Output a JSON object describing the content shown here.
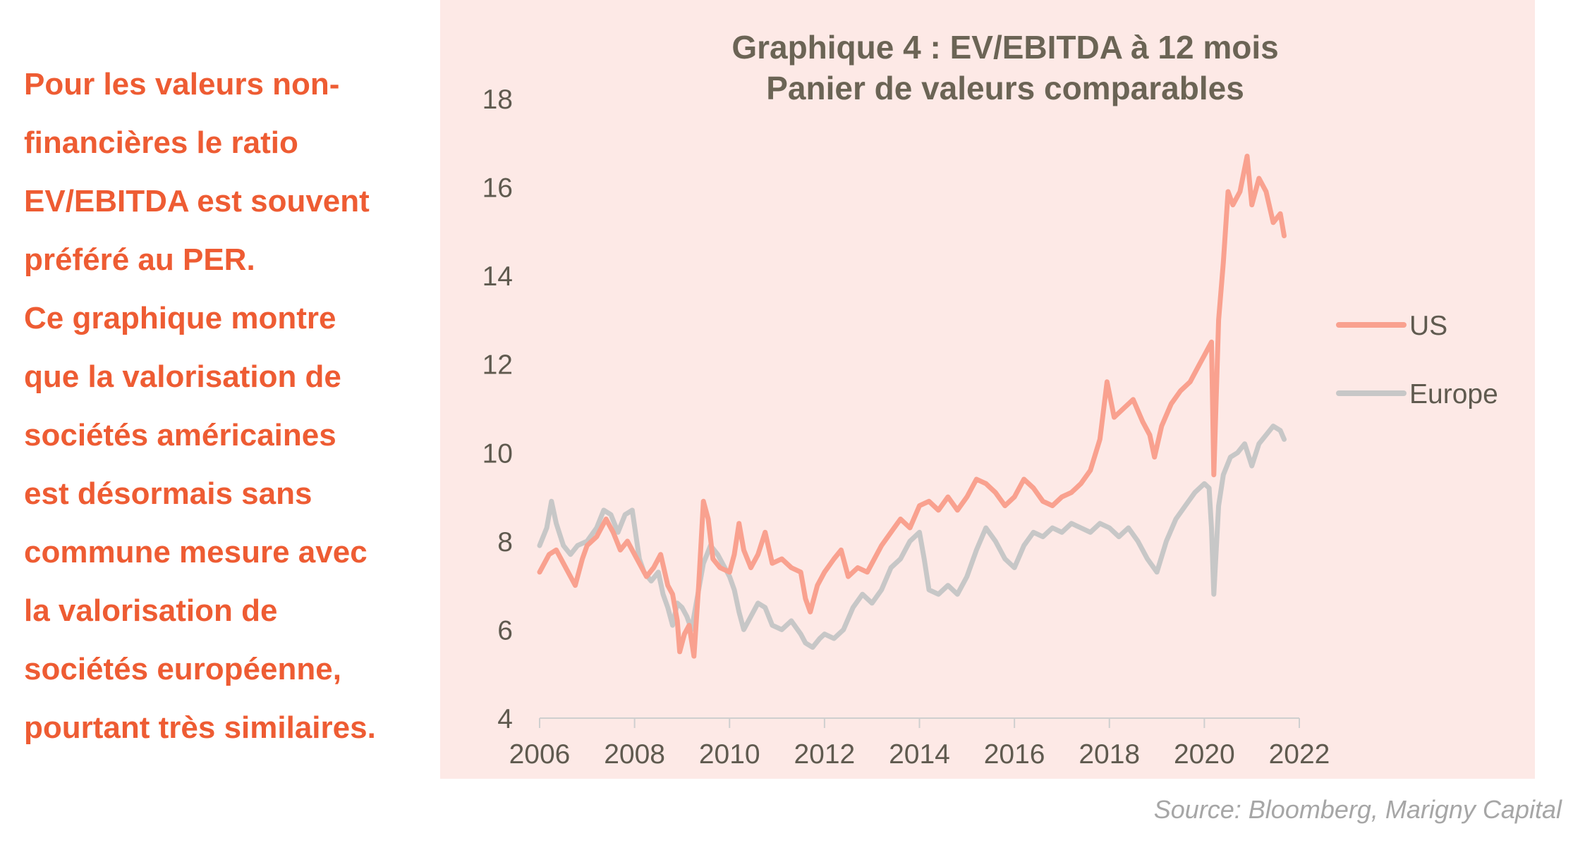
{
  "side_text": {
    "lines": [
      "Pour les valeurs non-",
      "financières le ratio",
      "EV/EBITDA est souvent",
      "préféré au PER.",
      "Ce graphique montre",
      "que la valorisation de",
      "sociétés américaines",
      "est désormais sans",
      "commune mesure avec",
      "la valorisation de",
      "sociétés européenne,",
      "pourtant très similaires."
    ]
  },
  "source": "Source: Bloomberg, Marigny Capital",
  "colors": {
    "us": "#f9a18f",
    "europe": "#c7c7c7",
    "accent_text": "#ee5c33",
    "panel": "#fde9e6"
  },
  "chart_data": {
    "type": "line",
    "title": "Graphique 4 : EV/EBITDA à 12 mois",
    "subtitle": "Panier de valeurs comparables",
    "xlabel": "",
    "ylabel": "",
    "xlim": [
      2006,
      2022
    ],
    "ylim": [
      4,
      18
    ],
    "x_ticks": [
      "2006",
      "2008",
      "2010",
      "2012",
      "2014",
      "2016",
      "2018",
      "2020",
      "2022"
    ],
    "y_ticks": [
      "4",
      "6",
      "8",
      "10",
      "12",
      "14",
      "16",
      "18"
    ],
    "grid": false,
    "legend_position": "right",
    "series": [
      {
        "name": "US",
        "color": "#f9a18f",
        "points": [
          [
            2006.0,
            7.3
          ],
          [
            2006.2,
            7.7
          ],
          [
            2006.35,
            7.8
          ],
          [
            2006.5,
            7.5
          ],
          [
            2006.65,
            7.2
          ],
          [
            2006.75,
            7.0
          ],
          [
            2006.9,
            7.6
          ],
          [
            2007.0,
            7.9
          ],
          [
            2007.2,
            8.1
          ],
          [
            2007.4,
            8.5
          ],
          [
            2007.55,
            8.2
          ],
          [
            2007.7,
            7.8
          ],
          [
            2007.85,
            8.0
          ],
          [
            2008.0,
            7.7
          ],
          [
            2008.1,
            7.5
          ],
          [
            2008.25,
            7.2
          ],
          [
            2008.4,
            7.4
          ],
          [
            2008.55,
            7.7
          ],
          [
            2008.7,
            7.0
          ],
          [
            2008.8,
            6.8
          ],
          [
            2008.9,
            6.2
          ],
          [
            2008.95,
            5.5
          ],
          [
            2009.05,
            5.9
          ],
          [
            2009.15,
            6.1
          ],
          [
            2009.25,
            5.4
          ],
          [
            2009.35,
            7.0
          ],
          [
            2009.45,
            8.9
          ],
          [
            2009.55,
            8.5
          ],
          [
            2009.65,
            7.6
          ],
          [
            2009.8,
            7.4
          ],
          [
            2010.0,
            7.3
          ],
          [
            2010.1,
            7.7
          ],
          [
            2010.2,
            8.4
          ],
          [
            2010.3,
            7.8
          ],
          [
            2010.45,
            7.4
          ],
          [
            2010.6,
            7.7
          ],
          [
            2010.75,
            8.2
          ],
          [
            2010.9,
            7.5
          ],
          [
            2011.1,
            7.6
          ],
          [
            2011.3,
            7.4
          ],
          [
            2011.5,
            7.3
          ],
          [
            2011.6,
            6.7
          ],
          [
            2011.7,
            6.4
          ],
          [
            2011.85,
            7.0
          ],
          [
            2012.0,
            7.3
          ],
          [
            2012.2,
            7.6
          ],
          [
            2012.35,
            7.8
          ],
          [
            2012.5,
            7.2
          ],
          [
            2012.7,
            7.4
          ],
          [
            2012.9,
            7.3
          ],
          [
            2013.0,
            7.5
          ],
          [
            2013.2,
            7.9
          ],
          [
            2013.4,
            8.2
          ],
          [
            2013.6,
            8.5
          ],
          [
            2013.8,
            8.3
          ],
          [
            2014.0,
            8.8
          ],
          [
            2014.2,
            8.9
          ],
          [
            2014.4,
            8.7
          ],
          [
            2014.6,
            9.0
          ],
          [
            2014.8,
            8.7
          ],
          [
            2015.0,
            9.0
          ],
          [
            2015.2,
            9.4
          ],
          [
            2015.4,
            9.3
          ],
          [
            2015.6,
            9.1
          ],
          [
            2015.8,
            8.8
          ],
          [
            2016.0,
            9.0
          ],
          [
            2016.2,
            9.4
          ],
          [
            2016.4,
            9.2
          ],
          [
            2016.6,
            8.9
          ],
          [
            2016.8,
            8.8
          ],
          [
            2017.0,
            9.0
          ],
          [
            2017.2,
            9.1
          ],
          [
            2017.4,
            9.3
          ],
          [
            2017.6,
            9.6
          ],
          [
            2017.8,
            10.3
          ],
          [
            2017.95,
            11.6
          ],
          [
            2018.1,
            10.8
          ],
          [
            2018.3,
            11.0
          ],
          [
            2018.5,
            11.2
          ],
          [
            2018.7,
            10.7
          ],
          [
            2018.85,
            10.4
          ],
          [
            2018.95,
            9.9
          ],
          [
            2019.1,
            10.6
          ],
          [
            2019.3,
            11.1
          ],
          [
            2019.5,
            11.4
          ],
          [
            2019.7,
            11.6
          ],
          [
            2019.9,
            12.0
          ],
          [
            2020.0,
            12.2
          ],
          [
            2020.1,
            12.4
          ],
          [
            2020.15,
            12.5
          ],
          [
            2020.2,
            9.5
          ],
          [
            2020.3,
            13.0
          ],
          [
            2020.4,
            14.3
          ],
          [
            2020.5,
            15.9
          ],
          [
            2020.6,
            15.6
          ],
          [
            2020.75,
            15.9
          ],
          [
            2020.9,
            16.7
          ],
          [
            2021.0,
            15.6
          ],
          [
            2021.15,
            16.2
          ],
          [
            2021.3,
            15.9
          ],
          [
            2021.45,
            15.2
          ],
          [
            2021.6,
            15.4
          ],
          [
            2021.68,
            14.9
          ]
        ]
      },
      {
        "name": "Europe",
        "color": "#c7c7c7",
        "points": [
          [
            2006.0,
            7.9
          ],
          [
            2006.15,
            8.3
          ],
          [
            2006.25,
            8.9
          ],
          [
            2006.35,
            8.4
          ],
          [
            2006.5,
            7.9
          ],
          [
            2006.65,
            7.7
          ],
          [
            2006.8,
            7.9
          ],
          [
            2007.0,
            8.0
          ],
          [
            2007.2,
            8.3
          ],
          [
            2007.35,
            8.7
          ],
          [
            2007.5,
            8.6
          ],
          [
            2007.65,
            8.2
          ],
          [
            2007.8,
            8.6
          ],
          [
            2007.95,
            8.7
          ],
          [
            2008.1,
            7.6
          ],
          [
            2008.2,
            7.3
          ],
          [
            2008.35,
            7.1
          ],
          [
            2008.5,
            7.3
          ],
          [
            2008.6,
            6.8
          ],
          [
            2008.7,
            6.5
          ],
          [
            2008.8,
            6.1
          ],
          [
            2008.9,
            6.6
          ],
          [
            2009.0,
            6.5
          ],
          [
            2009.1,
            6.3
          ],
          [
            2009.2,
            6.0
          ],
          [
            2009.3,
            6.6
          ],
          [
            2009.45,
            7.5
          ],
          [
            2009.6,
            7.9
          ],
          [
            2009.75,
            7.7
          ],
          [
            2009.9,
            7.4
          ],
          [
            2010.0,
            7.2
          ],
          [
            2010.1,
            6.9
          ],
          [
            2010.2,
            6.4
          ],
          [
            2010.3,
            6.0
          ],
          [
            2010.45,
            6.3
          ],
          [
            2010.6,
            6.6
          ],
          [
            2010.75,
            6.5
          ],
          [
            2010.9,
            6.1
          ],
          [
            2011.1,
            6.0
          ],
          [
            2011.3,
            6.2
          ],
          [
            2011.5,
            5.9
          ],
          [
            2011.6,
            5.7
          ],
          [
            2011.75,
            5.6
          ],
          [
            2011.9,
            5.8
          ],
          [
            2012.0,
            5.9
          ],
          [
            2012.2,
            5.8
          ],
          [
            2012.4,
            6.0
          ],
          [
            2012.6,
            6.5
          ],
          [
            2012.8,
            6.8
          ],
          [
            2013.0,
            6.6
          ],
          [
            2013.2,
            6.9
          ],
          [
            2013.4,
            7.4
          ],
          [
            2013.6,
            7.6
          ],
          [
            2013.8,
            8.0
          ],
          [
            2014.0,
            8.2
          ],
          [
            2014.1,
            7.6
          ],
          [
            2014.2,
            6.9
          ],
          [
            2014.4,
            6.8
          ],
          [
            2014.6,
            7.0
          ],
          [
            2014.8,
            6.8
          ],
          [
            2015.0,
            7.2
          ],
          [
            2015.2,
            7.8
          ],
          [
            2015.4,
            8.3
          ],
          [
            2015.6,
            8.0
          ],
          [
            2015.8,
            7.6
          ],
          [
            2016.0,
            7.4
          ],
          [
            2016.2,
            7.9
          ],
          [
            2016.4,
            8.2
          ],
          [
            2016.6,
            8.1
          ],
          [
            2016.8,
            8.3
          ],
          [
            2017.0,
            8.2
          ],
          [
            2017.2,
            8.4
          ],
          [
            2017.4,
            8.3
          ],
          [
            2017.6,
            8.2
          ],
          [
            2017.8,
            8.4
          ],
          [
            2018.0,
            8.3
          ],
          [
            2018.2,
            8.1
          ],
          [
            2018.4,
            8.3
          ],
          [
            2018.6,
            8.0
          ],
          [
            2018.8,
            7.6
          ],
          [
            2019.0,
            7.3
          ],
          [
            2019.2,
            8.0
          ],
          [
            2019.4,
            8.5
          ],
          [
            2019.6,
            8.8
          ],
          [
            2019.8,
            9.1
          ],
          [
            2020.0,
            9.3
          ],
          [
            2020.1,
            9.2
          ],
          [
            2020.15,
            8.3
          ],
          [
            2020.2,
            6.8
          ],
          [
            2020.3,
            8.8
          ],
          [
            2020.4,
            9.5
          ],
          [
            2020.55,
            9.9
          ],
          [
            2020.7,
            10.0
          ],
          [
            2020.85,
            10.2
          ],
          [
            2021.0,
            9.7
          ],
          [
            2021.15,
            10.2
          ],
          [
            2021.3,
            10.4
          ],
          [
            2021.45,
            10.6
          ],
          [
            2021.6,
            10.5
          ],
          [
            2021.68,
            10.3
          ]
        ]
      }
    ]
  }
}
